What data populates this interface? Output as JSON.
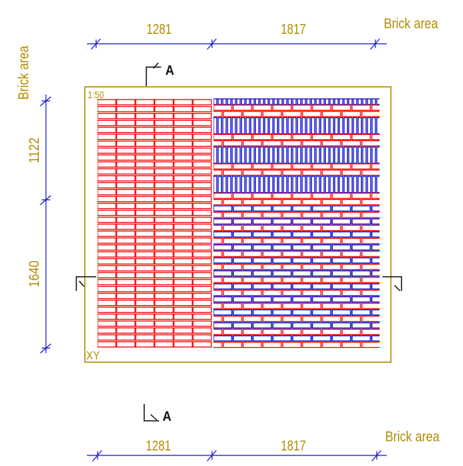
{
  "colors": {
    "brick_red": "#F40000",
    "brick_blue": "#0A0ACC",
    "dimension_blue": "#1414CC",
    "annotation_olive": "#B08C00",
    "marker_black": "#111111",
    "background": "#FFFFFF"
  },
  "frame": {
    "scale_label": "1:50",
    "origin_label": "XY"
  },
  "area_labels": {
    "top_left": "Brick area",
    "top_right": "Brick area",
    "bottom_right": "Brick area"
  },
  "dimensions": {
    "top": {
      "segments": [
        "1281",
        "1817"
      ]
    },
    "bottom": {
      "segments": [
        "1281",
        "1817"
      ]
    },
    "left": {
      "segments": [
        "1122",
        "1640"
      ]
    }
  },
  "section_markers": {
    "top_label": "A",
    "bottom_label": "A"
  },
  "patterns": {
    "left": {
      "name": "stack-bond-grid",
      "color_keys": [
        "brick_red"
      ]
    },
    "top_right": {
      "name": "soldier-courses-with-stretcher-rows",
      "color_keys": [
        "brick_blue",
        "brick_red"
      ]
    },
    "bottom_right": {
      "name": "running-bond-alternating-rows",
      "color_keys": [
        "brick_blue",
        "brick_red"
      ]
    }
  }
}
